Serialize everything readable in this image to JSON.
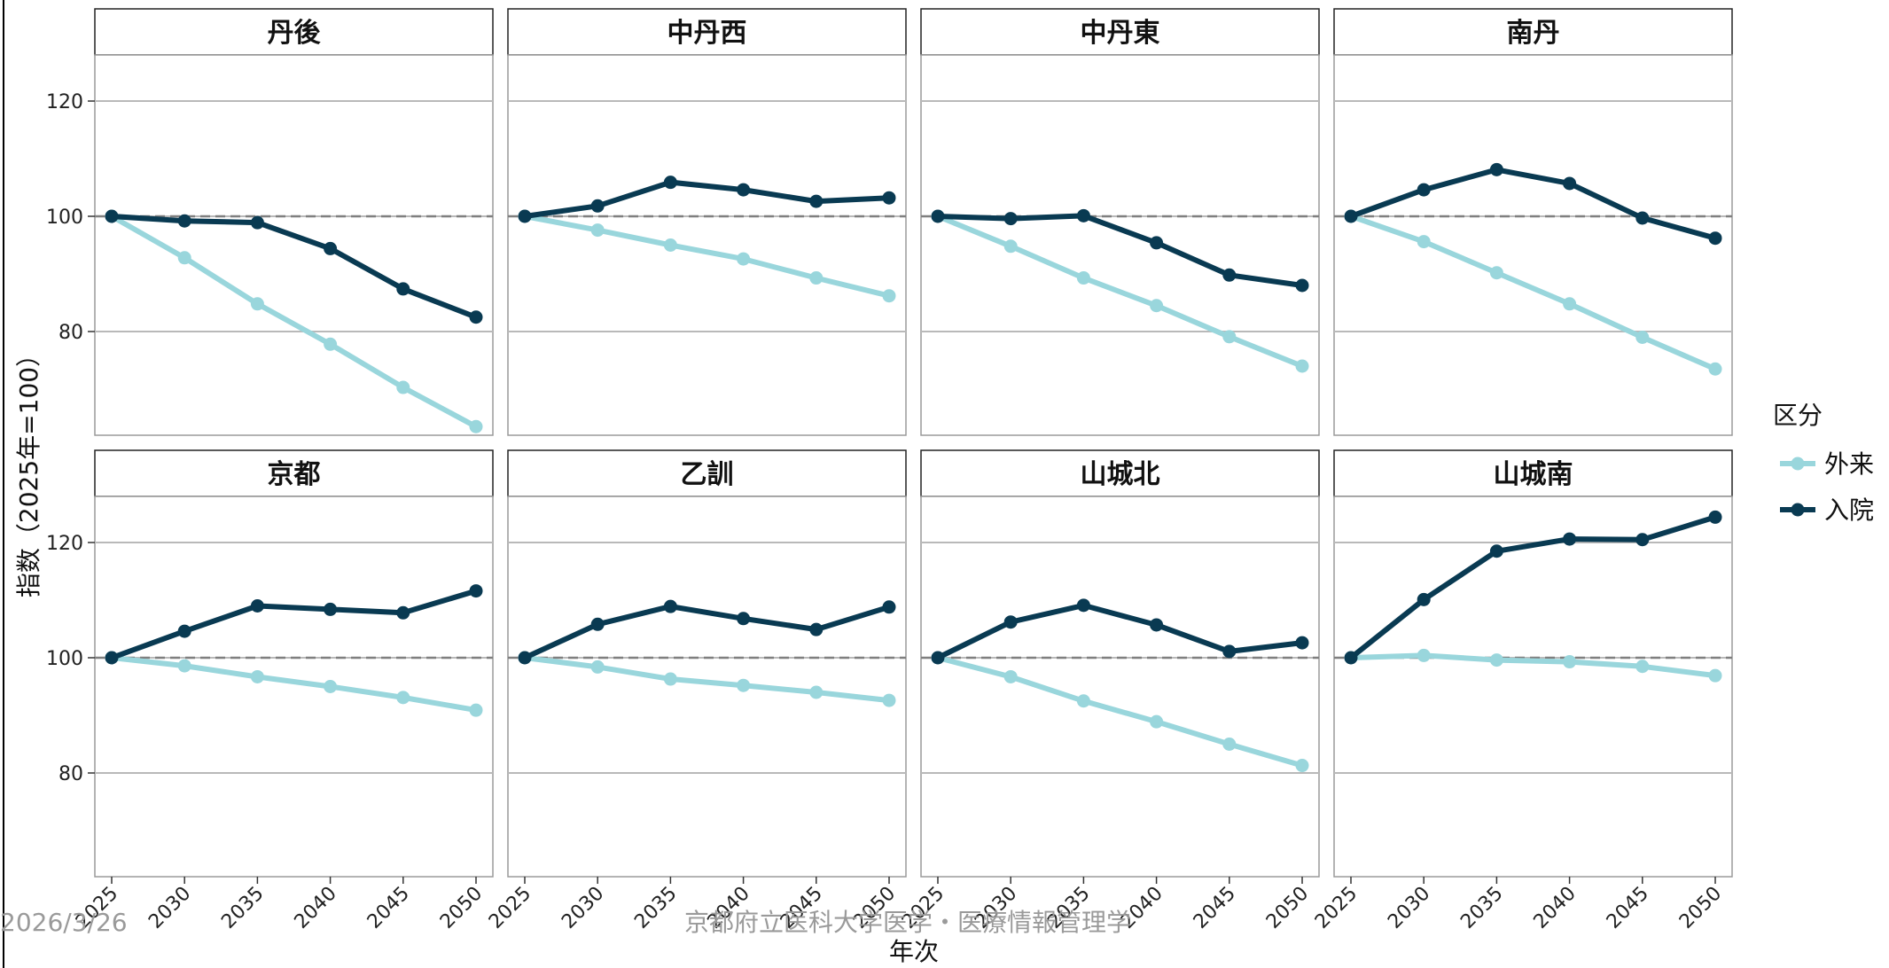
{
  "chart_data": {
    "type": "line",
    "facet_layout": "4x2 grid",
    "x": [
      "2025",
      "2030",
      "2035",
      "2040",
      "2045",
      "2050"
    ],
    "xlabel": "年次",
    "ylabel": "指数（2025年=100）",
    "y_ticks": [
      80,
      100,
      120
    ],
    "ylim": [
      62,
      128
    ],
    "reference_line": 100,
    "grid": true,
    "legend": {
      "title": "区分",
      "position": "right",
      "entries": [
        {
          "name": "外来",
          "color": "#99D6DC"
        },
        {
          "name": "入院",
          "color": "#093A52"
        }
      ]
    },
    "panels": [
      {
        "title": "丹後",
        "series": [
          {
            "name": "外来",
            "values": [
              100,
              92.8,
              84.8,
              77.8,
              70.3,
              63.5
            ]
          },
          {
            "name": "入院",
            "values": [
              100,
              99.2,
              98.9,
              94.4,
              87.4,
              82.5
            ]
          }
        ]
      },
      {
        "title": "中丹西",
        "series": [
          {
            "name": "外来",
            "values": [
              100,
              97.6,
              95.0,
              92.6,
              89.3,
              86.2
            ]
          },
          {
            "name": "入院",
            "values": [
              100,
              101.8,
              105.9,
              104.6,
              102.6,
              103.2
            ]
          }
        ]
      },
      {
        "title": "中丹東",
        "series": [
          {
            "name": "外来",
            "values": [
              100,
              94.8,
              89.3,
              84.5,
              79.1,
              74.0
            ]
          },
          {
            "name": "入院",
            "values": [
              100,
              99.6,
              100.1,
              95.4,
              89.8,
              88.0
            ]
          }
        ]
      },
      {
        "title": "南丹",
        "series": [
          {
            "name": "外来",
            "values": [
              100,
              95.6,
              90.2,
              84.8,
              79.0,
              73.5
            ]
          },
          {
            "name": "入院",
            "values": [
              100,
              104.6,
              108.1,
              105.7,
              99.7,
              96.2
            ]
          }
        ]
      },
      {
        "title": "京都",
        "series": [
          {
            "name": "外来",
            "values": [
              100,
              98.6,
              96.7,
              95.0,
              93.1,
              90.9
            ]
          },
          {
            "name": "入院",
            "values": [
              100,
              104.6,
              109.0,
              108.4,
              107.8,
              111.6
            ]
          }
        ]
      },
      {
        "title": "乙訓",
        "series": [
          {
            "name": "外来",
            "values": [
              100,
              98.4,
              96.3,
              95.2,
              94.0,
              92.6
            ]
          },
          {
            "name": "入院",
            "values": [
              100,
              105.8,
              108.9,
              106.8,
              104.9,
              108.8
            ]
          }
        ]
      },
      {
        "title": "山城北",
        "series": [
          {
            "name": "外来",
            "values": [
              100,
              96.7,
              92.5,
              88.9,
              85.0,
              81.3
            ]
          },
          {
            "name": "入院",
            "values": [
              100,
              106.2,
              109.1,
              105.7,
              101.1,
              102.6
            ]
          }
        ]
      },
      {
        "title": "山城南",
        "series": [
          {
            "name": "外来",
            "values": [
              100,
              100.4,
              99.6,
              99.3,
              98.5,
              96.9
            ]
          },
          {
            "name": "入院",
            "values": [
              100,
              110.1,
              118.5,
              120.6,
              120.5,
              124.4
            ]
          }
        ]
      }
    ]
  },
  "footer": {
    "date": "2026/3/26",
    "org": "京都府立医科大学医学・医療情報管理学"
  }
}
